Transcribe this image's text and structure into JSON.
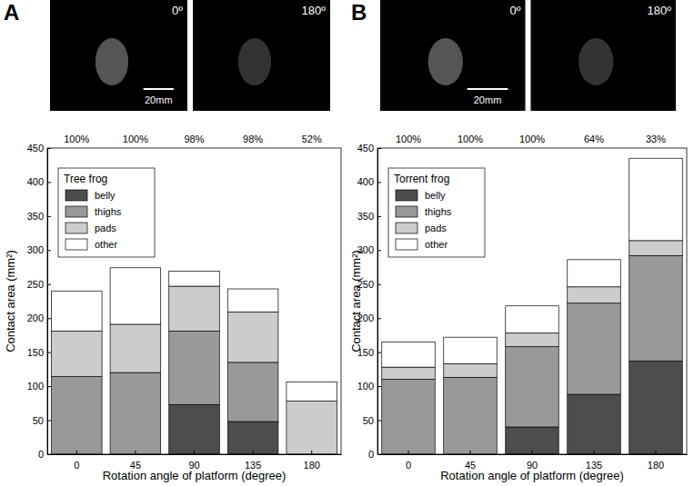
{
  "chart_data": [
    {
      "type": "bar",
      "stacked": true,
      "panel": "A",
      "images": [
        {
          "label": "0º"
        },
        {
          "label": "180º"
        }
      ],
      "scale_bar": "20mm",
      "legend_title": "Tree frog",
      "legend": "upper left",
      "x_label": "Rotation angle of platform (degree)",
      "y_label": "Contact area (mm²)",
      "categories": [
        "0",
        "45",
        "90",
        "135",
        "180"
      ],
      "annotations": [
        {
          "value": 100,
          "label": "100%"
        },
        {
          "value": 100,
          "label": "100%"
        },
        {
          "value": 98,
          "label": "98%"
        },
        {
          "value": 98,
          "label": "98%"
        },
        {
          "value": 52,
          "label": "52%"
        }
      ],
      "series": [
        {
          "name": "belly",
          "color": "#4d4d4d",
          "values": [
            0,
            0,
            73,
            48,
            0
          ]
        },
        {
          "name": "thighs",
          "color": "#999999",
          "values": [
            114,
            120,
            108,
            87,
            0
          ]
        },
        {
          "name": "pads",
          "color": "#cccccc",
          "values": [
            67,
            71,
            66,
            74,
            78
          ]
        },
        {
          "name": "other",
          "color": "#ffffff",
          "values": [
            59,
            83,
            22,
            34,
            28
          ]
        }
      ],
      "ylim": [
        0,
        450
      ],
      "yticks": [
        0,
        50,
        100,
        150,
        200,
        250,
        300,
        350,
        400,
        450
      ]
    },
    {
      "type": "bar",
      "stacked": true,
      "panel": "B",
      "images": [
        {
          "label": "0º"
        },
        {
          "label": "180º"
        }
      ],
      "scale_bar": "20mm",
      "legend_title": "Torrent frog",
      "legend": "upper left",
      "x_label": "Rotation angle of platform (degree)",
      "y_label": "Contact area (mm²)",
      "categories": [
        "0",
        "45",
        "90",
        "135",
        "180"
      ],
      "annotations": [
        {
          "value": 100,
          "label": "100%"
        },
        {
          "value": 100,
          "label": "100%"
        },
        {
          "value": 100,
          "label": "100%"
        },
        {
          "value": 64,
          "label": "64%"
        },
        {
          "value": 33,
          "label": "33%"
        }
      ],
      "series": [
        {
          "name": "belly",
          "color": "#4d4d4d",
          "values": [
            0,
            0,
            40,
            88,
            137
          ]
        },
        {
          "name": "thighs",
          "color": "#999999",
          "values": [
            110,
            113,
            118,
            134,
            155
          ]
        },
        {
          "name": "pads",
          "color": "#cccccc",
          "values": [
            18,
            20,
            20,
            24,
            22
          ]
        },
        {
          "name": "other",
          "color": "#ffffff",
          "values": [
            37,
            39,
            40,
            40,
            121
          ]
        }
      ],
      "ylim": [
        0,
        450
      ],
      "yticks": [
        0,
        50,
        100,
        150,
        200,
        250,
        300,
        350,
        400,
        450
      ]
    }
  ]
}
